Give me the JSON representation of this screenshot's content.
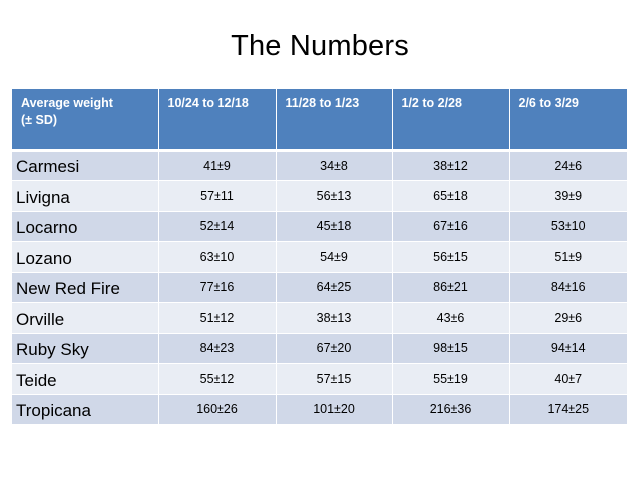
{
  "slide": {
    "title": "The Numbers"
  },
  "table": {
    "header": {
      "label_line1": "Average weight",
      "label_line2": "(± SD)",
      "periods": [
        "10/24 to 12/18",
        "11/28 to 1/23",
        "1/2 to 2/28",
        "2/6 to 3/29"
      ]
    },
    "rows": [
      {
        "variety": "Carmesi",
        "values": [
          "41±9",
          "34±8",
          "38±12",
          "24±6"
        ]
      },
      {
        "variety": "Livigna",
        "values": [
          "57±11",
          "56±13",
          "65±18",
          "39±9"
        ]
      },
      {
        "variety": "Locarno",
        "values": [
          "52±14",
          "45±18",
          "67±16",
          "53±10"
        ]
      },
      {
        "variety": "Lozano",
        "values": [
          "63±10",
          "54±9",
          "56±15",
          "51±9"
        ]
      },
      {
        "variety": "New Red Fire",
        "values": [
          "77±16",
          "64±25",
          "86±21",
          "84±16"
        ]
      },
      {
        "variety": "Orville",
        "values": [
          "51±12",
          "38±13",
          "43±6",
          "29±6"
        ]
      },
      {
        "variety": "Ruby Sky",
        "values": [
          "84±23",
          "67±20",
          "98±15",
          "94±14"
        ]
      },
      {
        "variety": "Teide",
        "values": [
          "55±12",
          "57±15",
          "55±19",
          "40±7"
        ]
      },
      {
        "variety": "Tropicana",
        "values": [
          "160±26",
          "101±20",
          "216±36",
          "174±25"
        ]
      }
    ]
  },
  "colors": {
    "header_bg": "#4f81bd",
    "row_dark": "#d0d8e8",
    "row_light": "#e9edf4"
  }
}
